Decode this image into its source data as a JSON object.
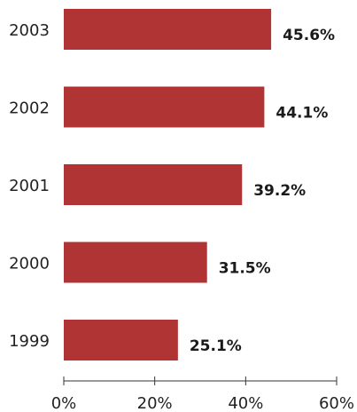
{
  "chart_data": {
    "type": "bar",
    "orientation": "horizontal",
    "categories": [
      "2003",
      "2002",
      "2001",
      "2000",
      "1999"
    ],
    "values": [
      45.6,
      44.1,
      39.2,
      31.5,
      25.1
    ],
    "value_labels": [
      "45.6%",
      "44.1%",
      "39.2%",
      "31.5%",
      "25.1%"
    ],
    "title": "",
    "xlabel": "",
    "ylabel": "",
    "xlim": [
      0,
      60
    ],
    "x_ticks": [
      0,
      20,
      40,
      60
    ],
    "x_tick_labels": [
      "0%",
      "20%",
      "40%",
      "60%"
    ],
    "grid": false,
    "legend": "none",
    "bar_color": "#b03434"
  }
}
